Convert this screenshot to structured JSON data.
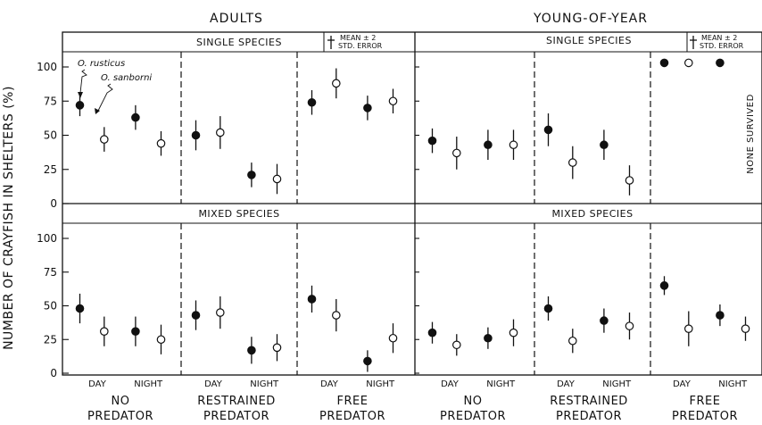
{
  "figure": {
    "column_titles": [
      "ADULTS",
      "YOUNG-OF-YEAR"
    ],
    "y_axis_label": "NUMBER OF CRAYFISH IN SHELTERS (%)",
    "legend_text": [
      "MEAN ± 2",
      "STD. ERROR"
    ],
    "species_labels": [
      "O. rusticus",
      "O. sanborni"
    ],
    "none_survived": "NONE SURVIVED",
    "colors": {
      "ink": "#111111",
      "background": "#ffffff"
    }
  },
  "chart_data": {
    "type": "scatter",
    "y_ticks": [
      0,
      25,
      50,
      75,
      100
    ],
    "ylim": [
      0,
      110
    ],
    "condition_labels": [
      [
        "NO",
        "PREDATOR"
      ],
      [
        "RESTRAINED",
        "PREDATOR"
      ],
      [
        "FREE",
        "PREDATOR"
      ]
    ],
    "time_labels": [
      "DAY",
      "NIGHT"
    ],
    "series_markers": {
      "O. rusticus": "filled-circle",
      "O. sanborni": "open-circle"
    },
    "panels": [
      {
        "column": "ADULTS",
        "row": "SINGLE SPECIES",
        "groups": [
          {
            "condition": "NO PREDATOR",
            "points": [
              {
                "species": "O. rusticus",
                "time": "DAY",
                "mean": 72,
                "err": 8
              },
              {
                "species": "O. sanborni",
                "time": "DAY",
                "mean": 47,
                "err": 9
              },
              {
                "species": "O. rusticus",
                "time": "NIGHT",
                "mean": 63,
                "err": 9
              },
              {
                "species": "O. sanborni",
                "time": "NIGHT",
                "mean": 44,
                "err": 9
              }
            ]
          },
          {
            "condition": "RESTRAINED PREDATOR",
            "points": [
              {
                "species": "O. rusticus",
                "time": "DAY",
                "mean": 50,
                "err": 11
              },
              {
                "species": "O. sanborni",
                "time": "DAY",
                "mean": 52,
                "err": 12
              },
              {
                "species": "O. rusticus",
                "time": "NIGHT",
                "mean": 21,
                "err": 9
              },
              {
                "species": "O. sanborni",
                "time": "NIGHT",
                "mean": 18,
                "err": 11
              }
            ]
          },
          {
            "condition": "FREE PREDATOR",
            "points": [
              {
                "species": "O. rusticus",
                "time": "DAY",
                "mean": 74,
                "err": 9
              },
              {
                "species": "O. sanborni",
                "time": "DAY",
                "mean": 88,
                "err": 11
              },
              {
                "species": "O. rusticus",
                "time": "NIGHT",
                "mean": 70,
                "err": 9
              },
              {
                "species": "O. sanborni",
                "time": "NIGHT",
                "mean": 75,
                "err": 9
              }
            ]
          }
        ]
      },
      {
        "column": "ADULTS",
        "row": "MIXED SPECIES",
        "groups": [
          {
            "condition": "NO PREDATOR",
            "points": [
              {
                "species": "O. rusticus",
                "time": "DAY",
                "mean": 48,
                "err": 11
              },
              {
                "species": "O. sanborni",
                "time": "DAY",
                "mean": 31,
                "err": 11
              },
              {
                "species": "O. rusticus",
                "time": "NIGHT",
                "mean": 31,
                "err": 11
              },
              {
                "species": "O. sanborni",
                "time": "NIGHT",
                "mean": 25,
                "err": 11
              }
            ]
          },
          {
            "condition": "RESTRAINED PREDATOR",
            "points": [
              {
                "species": "O. rusticus",
                "time": "DAY",
                "mean": 43,
                "err": 11
              },
              {
                "species": "O. sanborni",
                "time": "DAY",
                "mean": 45,
                "err": 12
              },
              {
                "species": "O. rusticus",
                "time": "NIGHT",
                "mean": 17,
                "err": 10
              },
              {
                "species": "O. sanborni",
                "time": "NIGHT",
                "mean": 19,
                "err": 10
              }
            ]
          },
          {
            "condition": "FREE PREDATOR",
            "points": [
              {
                "species": "O. rusticus",
                "time": "DAY",
                "mean": 55,
                "err": 10
              },
              {
                "species": "O. sanborni",
                "time": "DAY",
                "mean": 43,
                "err": 12
              },
              {
                "species": "O. rusticus",
                "time": "NIGHT",
                "mean": 9,
                "err": 8
              },
              {
                "species": "O. sanborni",
                "time": "NIGHT",
                "mean": 26,
                "err": 11
              }
            ]
          }
        ]
      },
      {
        "column": "YOUNG-OF-YEAR",
        "row": "SINGLE SPECIES",
        "groups": [
          {
            "condition": "NO PREDATOR",
            "points": [
              {
                "species": "O. rusticus",
                "time": "DAY",
                "mean": 46,
                "err": 9
              },
              {
                "species": "O. sanborni",
                "time": "DAY",
                "mean": 37,
                "err": 12
              },
              {
                "species": "O. rusticus",
                "time": "NIGHT",
                "mean": 43,
                "err": 11
              },
              {
                "species": "O. sanborni",
                "time": "NIGHT",
                "mean": 43,
                "err": 11
              }
            ]
          },
          {
            "condition": "RESTRAINED PREDATOR",
            "points": [
              {
                "species": "O. rusticus",
                "time": "DAY",
                "mean": 54,
                "err": 12
              },
              {
                "species": "O. sanborni",
                "time": "DAY",
                "mean": 30,
                "err": 12
              },
              {
                "species": "O. rusticus",
                "time": "NIGHT",
                "mean": 43,
                "err": 11
              },
              {
                "species": "O. sanborni",
                "time": "NIGHT",
                "mean": 17,
                "err": 11
              }
            ]
          },
          {
            "condition": "FREE PREDATOR",
            "points": [
              {
                "species": "O. rusticus",
                "time": "DAY",
                "mean": 103,
                "err": 0
              },
              {
                "species": "O. sanborni",
                "time": "DAY",
                "mean": 103,
                "err": 0
              },
              {
                "species": "O. rusticus",
                "time": "NIGHT",
                "mean": 103,
                "err": 0
              }
            ]
          }
        ]
      },
      {
        "column": "YOUNG-OF-YEAR",
        "row": "MIXED SPECIES",
        "groups": [
          {
            "condition": "NO PREDATOR",
            "points": [
              {
                "species": "O. rusticus",
                "time": "DAY",
                "mean": 30,
                "err": 8
              },
              {
                "species": "O. sanborni",
                "time": "DAY",
                "mean": 21,
                "err": 8
              },
              {
                "species": "O. rusticus",
                "time": "NIGHT",
                "mean": 26,
                "err": 8
              },
              {
                "species": "O. sanborni",
                "time": "NIGHT",
                "mean": 30,
                "err": 10
              }
            ]
          },
          {
            "condition": "RESTRAINED PREDATOR",
            "points": [
              {
                "species": "O. rusticus",
                "time": "DAY",
                "mean": 48,
                "err": 9
              },
              {
                "species": "O. sanborni",
                "time": "DAY",
                "mean": 24,
                "err": 9
              },
              {
                "species": "O. rusticus",
                "time": "NIGHT",
                "mean": 39,
                "err": 9
              },
              {
                "species": "O. sanborni",
                "time": "NIGHT",
                "mean": 35,
                "err": 10
              }
            ]
          },
          {
            "condition": "FREE PREDATOR",
            "points": [
              {
                "species": "O. rusticus",
                "time": "DAY",
                "mean": 65,
                "err": 7
              },
              {
                "species": "O. sanborni",
                "time": "DAY",
                "mean": 33,
                "err": 13
              },
              {
                "species": "O. rusticus",
                "time": "NIGHT",
                "mean": 43,
                "err": 8
              },
              {
                "species": "O. sanborni",
                "time": "NIGHT",
                "mean": 33,
                "err": 9
              }
            ]
          }
        ]
      }
    ]
  }
}
